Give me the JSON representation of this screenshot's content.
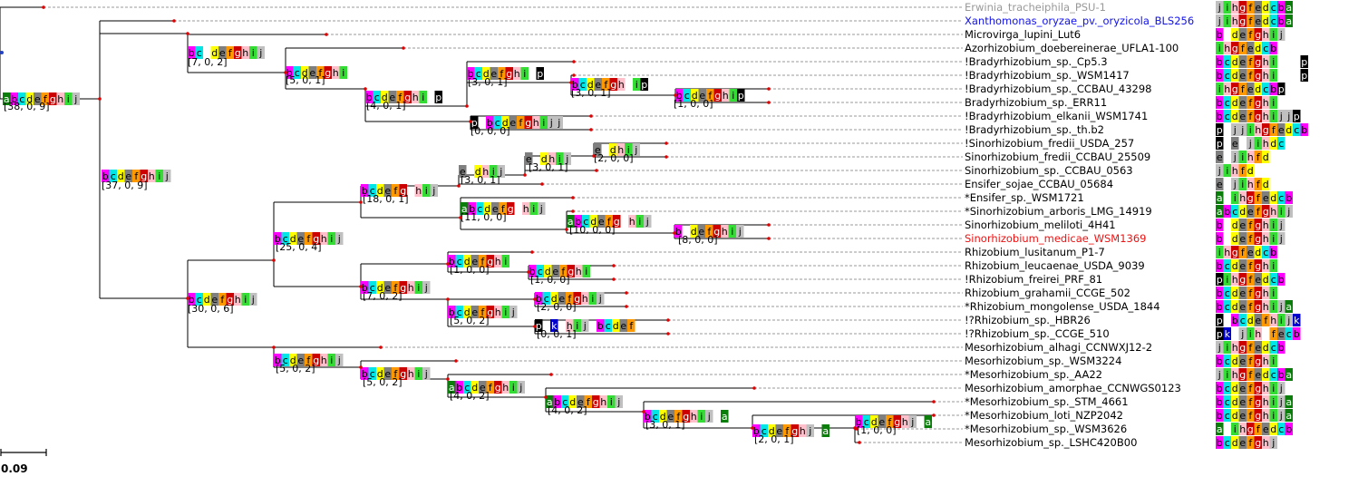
{
  "colors": {
    "a": "#0a7d0a",
    "b": "#ff00ff",
    "c": "#00e5e5",
    "d": "#ffff00",
    "e": "#7f7f7f",
    "f": "#ff9900",
    "g": "#cc0000",
    "h": "#ffc0cb",
    "i": "#33dd33",
    "j": "#c0c0c0",
    "k": "#0000cc",
    "p": "#000000"
  },
  "tips": [
    {
      "label": "Erwinia_tracheiphila_PSU-1",
      "color": "#999999",
      "pattern": "jihgfedcba"
    },
    {
      "label": "Xanthomonas_oryzae_pv._oryzicola_BLS256",
      "color": "#1111ee",
      "pattern": "jihgfedcba"
    },
    {
      "label": "Microvirga_lupini_Lut6",
      "color": "#000000",
      "pattern": "b_defghij"
    },
    {
      "label": "Azorhizobium_doebereinerae_UFLA1-100",
      "color": "#000000",
      "pattern": "ihgfedcb"
    },
    {
      "label": "!Bradyrhizobium_sp._Cp5.3",
      "color": "#000000",
      "pattern": "bcdefghi___p"
    },
    {
      "label": "!Bradyrhizobium_sp._WSM1417",
      "color": "#000000",
      "pattern": "bcdefghi___p"
    },
    {
      "label": "!Bradyrhizobium_sp._CCBAU_43298",
      "color": "#000000",
      "pattern": "ihgfedcbp"
    },
    {
      "label": "Bradyrhizobium_sp._ERR11",
      "color": "#000000",
      "pattern": "bcdefghi"
    },
    {
      "label": "!Bradyrhizobium_elkanii_WSM1741",
      "color": "#000000",
      "pattern": "bcdefghijjp"
    },
    {
      "label": "!Bradyrhizobium_sp._th.b2",
      "color": "#000000",
      "pattern": "p_jjihgfedcb"
    },
    {
      "label": "!Sinorhizobium_fredii_USDA_257",
      "color": "#000000",
      "pattern": "p_e_jihdc"
    },
    {
      "label": "Sinorhizobium_fredii_CCBAU_25509",
      "color": "#000000",
      "pattern": "e_jihfd"
    },
    {
      "label": "Sinorhizobium_sp._CCBAU_0563",
      "color": "#000000",
      "pattern": "jihfd"
    },
    {
      "label": "Ensifer_sojae_CCBAU_05684",
      "color": "#000000",
      "pattern": "e_jihfd"
    },
    {
      "label": "*Ensifer_sp._WSM1721",
      "color": "#000000",
      "pattern": "a_ihgfedcb"
    },
    {
      "label": "*Sinorhizobium_arboris_LMG_14919",
      "color": "#000000",
      "pattern": "abcdefghij"
    },
    {
      "label": "Sinorhizobium_meliloti_4H41",
      "color": "#000000",
      "pattern": "b_defghij"
    },
    {
      "label": "Sinorhizobium_medicae_WSM1369",
      "color": "#ee1111",
      "pattern": "b_defghij"
    },
    {
      "label": "Rhizobium_lusitanum_P1-7",
      "color": "#000000",
      "pattern": "ihgfedcb"
    },
    {
      "label": "Rhizobium_leucaenae_USDA_9039",
      "color": "#000000",
      "pattern": "bcdefghi"
    },
    {
      "label": "!Rhizobium_freirei_PRF_81",
      "color": "#000000",
      "pattern": "pihgfedcb"
    },
    {
      "label": "Rhizobium_grahamii_CCGE_502",
      "color": "#000000",
      "pattern": "bcdefghi"
    },
    {
      "label": "*Rhizobium_mongolense_USDA_1844",
      "color": "#000000",
      "pattern": "bcdefghija"
    },
    {
      "label": "!?Rhizobium_sp._HBR26",
      "color": "#000000",
      "pattern": "p_bcdefhijk"
    },
    {
      "label": "!?Rhizobium_sp._CCGE_510",
      "color": "#000000",
      "pattern": "pk_jih_fecb"
    },
    {
      "label": "Mesorhizobium_alhagi_CCNWXJ12-2",
      "color": "#000000",
      "pattern": "jihgfedcb"
    },
    {
      "label": "Mesorhizobium_sp._WSM3224",
      "color": "#000000",
      "pattern": "bcdefghi"
    },
    {
      "label": "*Mesorhizobium_sp._AA22",
      "color": "#000000",
      "pattern": "jihgfedcba"
    },
    {
      "label": "Mesorhizobium_amorphae_CCNWGS0123",
      "color": "#000000",
      "pattern": "bcdefghij"
    },
    {
      "label": "*Mesorhizobium_sp._STM_4661",
      "color": "#000000",
      "pattern": "bcdefghija"
    },
    {
      "label": "*Mesorhizobium_loti_NZP2042",
      "color": "#000000",
      "pattern": "bcdefghija"
    },
    {
      "label": "*Mesorhizobium_sp._WSM3626",
      "color": "#000000",
      "pattern": "a_ihgfedcb"
    },
    {
      "label": "Mesorhizobium_sp._LSHC420B00",
      "color": "#000000",
      "pattern": "bcdefghj"
    }
  ],
  "internal_nodes": [
    {
      "id": "n01",
      "counts": "[38, 0, 9]",
      "pattern": "abcdefghij"
    },
    {
      "id": "n02",
      "counts": "[37, 0, 9]",
      "pattern": "bcdefghij"
    },
    {
      "id": "n03",
      "counts": "[7, 0, 2]",
      "pattern": "bc_defghij"
    },
    {
      "id": "n04",
      "counts": "[30, 0, 6]",
      "pattern": "bcdefghij"
    },
    {
      "id": "n05",
      "counts": "[5, 0, 1]",
      "pattern": "bcdefghi"
    },
    {
      "id": "n06",
      "counts": "[4, 0, 1]",
      "pattern": "bcdefghi_p"
    },
    {
      "id": "n07",
      "counts": "[3, 0, 1]",
      "pattern": "bcdefghi_p"
    },
    {
      "id": "n08",
      "counts": "[3, 0, 1]",
      "pattern": "bcdefgh_ip"
    },
    {
      "id": "n09",
      "counts": "[1, 0, 0]",
      "pattern": "bcdefghip"
    },
    {
      "id": "n10",
      "counts": "[0, 0, 0]",
      "pattern": "p_bcdefghijj"
    },
    {
      "id": "n11",
      "counts": "[25, 0, 4]",
      "pattern": "bcdefghij"
    },
    {
      "id": "n12",
      "counts": "[18, 0, 1]",
      "pattern": "bcdefg_hij"
    },
    {
      "id": "n13",
      "counts": "[3, 0, 1]",
      "pattern": "e_dhij"
    },
    {
      "id": "n14",
      "counts": "[3, 0, 1]",
      "pattern": "e_dhij"
    },
    {
      "id": "n15",
      "counts": "[2, 0, 0]",
      "pattern": "e_dhij"
    },
    {
      "id": "n16",
      "counts": "[11, 0, 0]",
      "pattern": "abcdefg_hij"
    },
    {
      "id": "n17",
      "counts": "[10, 0, 0]",
      "pattern": "abcdefg_hij"
    },
    {
      "id": "n18",
      "counts": "[8, 0, 0]",
      "pattern": "b_defghij"
    },
    {
      "id": "n19",
      "counts": "[7, 0, 2]",
      "pattern": "bcdefghij"
    },
    {
      "id": "n20",
      "counts": "[1, 0, 0]",
      "pattern": "bcdefghi"
    },
    {
      "id": "n21",
      "counts": "[1, 0, 0]",
      "pattern": "bcdefghi"
    },
    {
      "id": "n22",
      "counts": "[5, 0, 2]",
      "pattern": "bcdefghij"
    },
    {
      "id": "n23",
      "counts": "[2, 0, 0]",
      "pattern": "bcdefghij"
    },
    {
      "id": "n24",
      "counts": "[0, 0, 1]",
      "pattern": "p_k_hij_bcdef"
    },
    {
      "id": "n25",
      "counts": "[5, 0, 2]",
      "pattern": "bcdefghij"
    },
    {
      "id": "n26",
      "counts": "[5, 0, 2]",
      "pattern": "bcdefghij"
    },
    {
      "id": "n27",
      "counts": "[4, 0, 2]",
      "pattern": "abcdefghij"
    },
    {
      "id": "n28",
      "counts": "[4, 0, 2]",
      "pattern": "abcdefghij"
    },
    {
      "id": "n29",
      "counts": "[3, 0, 1]",
      "pattern": "bcdefghij_a"
    },
    {
      "id": "n30",
      "counts": "[2, 0, 1]",
      "pattern": "bcdefghj_a"
    },
    {
      "id": "n31",
      "counts": "[1, 0, 0]",
      "pattern": "bcdefghj_a"
    }
  ],
  "scale_bar": {
    "label": "0.09"
  }
}
